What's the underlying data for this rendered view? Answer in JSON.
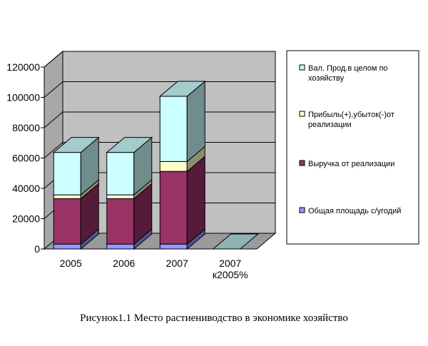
{
  "caption": "Рисунок1.1 Место растиениводство в экономике хозяйство",
  "chart_data": {
    "type": "bar",
    "stacked": true,
    "three_d": true,
    "categories": [
      "2005",
      "2006",
      "2007",
      "2007\nк2005%"
    ],
    "series": [
      {
        "name": "Общая площадь с/угодий",
        "color": "#9999ff",
        "values": [
          3200,
          3200,
          3200,
          0
        ]
      },
      {
        "name": "Выручка от реализации",
        "color": "#993366",
        "values": [
          30000,
          30000,
          48000,
          0
        ]
      },
      {
        "name": "Прибыль(+),убыток(-)от реализации",
        "color": "#ffffcc",
        "values": [
          2500,
          2500,
          6500,
          0
        ]
      },
      {
        "name": "Вал. Прод.в целом по хозяйству",
        "color": "#ccffff",
        "values": [
          28000,
          28000,
          43000,
          0
        ]
      }
    ],
    "yticks": [
      0,
      20000,
      40000,
      60000,
      80000,
      100000,
      120000
    ],
    "ylim": [
      0,
      120000
    ],
    "grid": true,
    "legend": "right",
    "wall_color": "#c0c0c0"
  }
}
